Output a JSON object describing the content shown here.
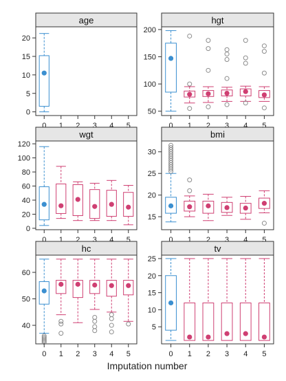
{
  "figure": {
    "xlabel": "Imputation number"
  },
  "colors": {
    "observed": "#3b8fd0",
    "imputed": "#cf3f72",
    "strip_fill": "#e6e6e6",
    "outlier": "#8c8c8c"
  },
  "chart_data": [
    {
      "type": "box",
      "title": "age",
      "categories": [
        "0",
        "1",
        "2",
        "3",
        "4",
        "5"
      ],
      "ylim": [
        -1,
        23
      ],
      "yticks": [
        0,
        5,
        10,
        15,
        20
      ],
      "ytick_labels": [
        "0",
        "5",
        "10",
        "15",
        "20"
      ],
      "boxes": [
        {
          "x": "0",
          "lower": 0,
          "q1": 1.5,
          "median": 10.5,
          "q3": 15.2,
          "upper": 21.2,
          "series": "observed"
        }
      ],
      "outliers": []
    },
    {
      "type": "box",
      "title": "hgt",
      "categories": [
        "0",
        "1",
        "2",
        "3",
        "4",
        "5"
      ],
      "ylim": [
        42,
        205
      ],
      "yticks": [
        50,
        100,
        150,
        200
      ],
      "ytick_labels": [
        "50",
        "100",
        "150",
        "200"
      ],
      "boxes": [
        {
          "x": "0",
          "lower": 50,
          "q1": 85,
          "median": 147,
          "q3": 175,
          "upper": 198,
          "series": "observed"
        },
        {
          "x": "1",
          "lower": 65,
          "q1": 76,
          "median": 81,
          "q3": 87,
          "upper": 95,
          "series": "imputed"
        },
        {
          "x": "2",
          "lower": 66,
          "q1": 77,
          "median": 82,
          "q3": 88,
          "upper": 95,
          "series": "imputed"
        },
        {
          "x": "3",
          "lower": 68,
          "q1": 78,
          "median": 83,
          "q3": 89,
          "upper": 94,
          "series": "imputed"
        },
        {
          "x": "4",
          "lower": 68,
          "q1": 78,
          "median": 86,
          "q3": 91,
          "upper": 96,
          "series": "imputed"
        },
        {
          "x": "5",
          "lower": 68,
          "q1": 75,
          "median": 80,
          "q3": 88,
          "upper": 95,
          "series": "imputed"
        }
      ],
      "outliers": [
        {
          "x": "1",
          "values": [
            188,
            100,
            55
          ]
        },
        {
          "x": "2",
          "values": [
            180,
            165,
            125,
            58
          ]
        },
        {
          "x": "3",
          "values": [
            163,
            155,
            145,
            110,
            62
          ]
        },
        {
          "x": "4",
          "values": [
            180,
            148,
            138,
            65
          ]
        },
        {
          "x": "5",
          "values": [
            170,
            160,
            120,
            56
          ]
        }
      ]
    },
    {
      "type": "box",
      "title": "wgt",
      "categories": [
        "0",
        "1",
        "2",
        "3",
        "4",
        "5"
      ],
      "ylim": [
        -2,
        124
      ],
      "yticks": [
        0,
        20,
        40,
        60,
        80,
        100,
        120
      ],
      "ytick_labels": [
        "0",
        "20",
        "40",
        "60",
        "80",
        "100",
        "120"
      ],
      "boxes": [
        {
          "x": "0",
          "lower": 4,
          "q1": 12,
          "median": 34,
          "q3": 59,
          "upper": 116,
          "series": "observed"
        },
        {
          "x": "1",
          "lower": 14,
          "q1": 21,
          "median": 32,
          "q3": 63,
          "upper": 88,
          "series": "imputed"
        },
        {
          "x": "2",
          "lower": 11,
          "q1": 18,
          "median": 41,
          "q3": 62,
          "upper": 66,
          "series": "imputed"
        },
        {
          "x": "3",
          "lower": 11,
          "q1": 14,
          "median": 31,
          "q3": 55,
          "upper": 64,
          "series": "imputed"
        },
        {
          "x": "4",
          "lower": 11,
          "q1": 17,
          "median": 34,
          "q3": 54,
          "upper": 68,
          "series": "imputed"
        },
        {
          "x": "5",
          "lower": 5,
          "q1": 17,
          "median": 30,
          "q3": 51,
          "upper": 61,
          "series": "imputed"
        }
      ],
      "outliers": []
    },
    {
      "type": "box",
      "title": "bmi",
      "categories": [
        "0",
        "1",
        "2",
        "3",
        "4",
        "5"
      ],
      "ylim": [
        12,
        32.5
      ],
      "yticks": [
        15,
        20,
        25,
        30
      ],
      "ytick_labels": [
        "15",
        "20",
        "25",
        "30"
      ],
      "boxes": [
        {
          "x": "0",
          "lower": 13.8,
          "q1": 15.8,
          "median": 17.5,
          "q3": 19.5,
          "upper": 25,
          "series": "observed"
        },
        {
          "x": "1",
          "lower": 15,
          "q1": 16.3,
          "median": 17.3,
          "q3": 18.6,
          "upper": 19.8,
          "series": "imputed"
        },
        {
          "x": "2",
          "lower": 14.1,
          "q1": 15.8,
          "median": 17.5,
          "q3": 18.6,
          "upper": 20.2,
          "series": "imputed"
        },
        {
          "x": "3",
          "lower": 15.3,
          "q1": 16,
          "median": 17.1,
          "q3": 18.3,
          "upper": 19.5,
          "series": "imputed"
        },
        {
          "x": "4",
          "lower": 14.4,
          "q1": 15.8,
          "median": 17,
          "q3": 18.1,
          "upper": 19.7,
          "series": "imputed"
        },
        {
          "x": "5",
          "lower": 15.9,
          "q1": 16.9,
          "median": 18.1,
          "q3": 19.3,
          "upper": 21,
          "series": "imputed"
        }
      ],
      "outliers": [
        {
          "x": "0",
          "values": [
            25.5,
            26,
            26.5,
            27,
            27.5,
            28,
            28.5,
            29,
            29.5,
            30,
            30.5,
            31,
            31.5
          ]
        },
        {
          "x": "1",
          "values": [
            23.5,
            21
          ]
        },
        {
          "x": "5",
          "values": [
            13.5
          ]
        }
      ]
    },
    {
      "type": "box",
      "title": "hc",
      "categories": [
        "0",
        "1",
        "2",
        "3",
        "4",
        "5"
      ],
      "ylim": [
        33,
        66.5
      ],
      "yticks": [
        40,
        50,
        60
      ],
      "ytick_labels": [
        "40",
        "50",
        "60"
      ],
      "boxes": [
        {
          "x": "0",
          "lower": 37,
          "q1": 48,
          "median": 53,
          "q3": 56.5,
          "upper": 65,
          "series": "observed"
        },
        {
          "x": "1",
          "lower": 44,
          "q1": 52,
          "median": 55.5,
          "q3": 57,
          "upper": 65,
          "series": "imputed"
        },
        {
          "x": "2",
          "lower": 41,
          "q1": 50.5,
          "median": 55.5,
          "q3": 57,
          "upper": 65,
          "series": "imputed"
        },
        {
          "x": "3",
          "lower": 46,
          "q1": 52,
          "median": 55.2,
          "q3": 57,
          "upper": 65,
          "series": "imputed"
        },
        {
          "x": "4",
          "lower": 45,
          "q1": 51,
          "median": 55,
          "q3": 57,
          "upper": 65,
          "series": "imputed"
        },
        {
          "x": "5",
          "lower": 41.5,
          "q1": 51.5,
          "median": 55,
          "q3": 57,
          "upper": 65,
          "series": "imputed"
        }
      ],
      "outliers": [
        {
          "x": "0",
          "values": [
            36,
            35.5,
            35,
            34.5,
            34,
            33.5
          ]
        },
        {
          "x": "1",
          "values": [
            41.5,
            40.5,
            37
          ]
        },
        {
          "x": "3",
          "values": [
            43,
            41.5,
            39.5,
            38
          ]
        },
        {
          "x": "4",
          "values": [
            44,
            42.5,
            40,
            37.5
          ]
        },
        {
          "x": "5",
          "values": [
            40.5
          ]
        }
      ]
    },
    {
      "type": "box",
      "title": "tv",
      "categories": [
        "0",
        "1",
        "2",
        "3",
        "4",
        "5"
      ],
      "ylim": [
        0,
        26
      ],
      "yticks": [
        5,
        10,
        15,
        20,
        25
      ],
      "ytick_labels": [
        "5",
        "10",
        "15",
        "20",
        "25"
      ],
      "boxes": [
        {
          "x": "0",
          "lower": 1,
          "q1": 4,
          "median": 12,
          "q3": 20,
          "upper": 25,
          "series": "observed"
        },
        {
          "x": "1",
          "lower": 1,
          "q1": 1,
          "median": 2,
          "q3": 12,
          "upper": 25,
          "series": "imputed"
        },
        {
          "x": "2",
          "lower": 1,
          "q1": 1,
          "median": 2,
          "q3": 12,
          "upper": 25,
          "series": "imputed"
        },
        {
          "x": "3",
          "lower": 1,
          "q1": 1,
          "median": 3,
          "q3": 12,
          "upper": 25,
          "series": "imputed"
        },
        {
          "x": "4",
          "lower": 1,
          "q1": 1,
          "median": 3,
          "q3": 12,
          "upper": 25,
          "series": "imputed"
        },
        {
          "x": "5",
          "lower": 1,
          "q1": 1,
          "median": 2,
          "q3": 12,
          "upper": 25,
          "series": "imputed"
        }
      ],
      "outliers": []
    }
  ]
}
